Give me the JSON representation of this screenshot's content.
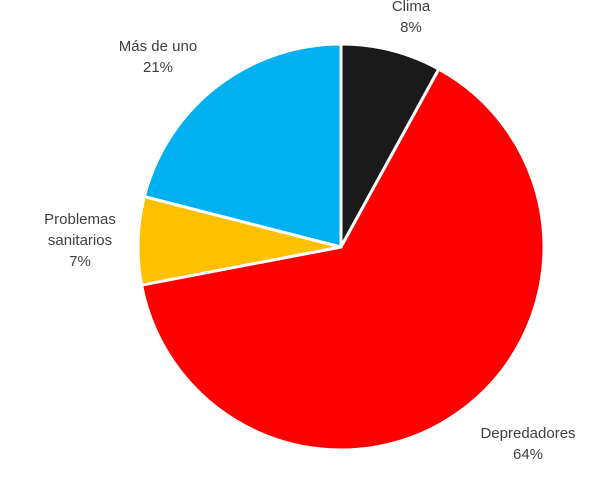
{
  "chart_data": {
    "type": "pie",
    "title": "",
    "legend": "none",
    "slices": [
      {
        "label_lines": [
          "Clima"
        ],
        "percent_label": "8%",
        "value": 8,
        "color": "#1a1a1a"
      },
      {
        "label_lines": [
          "Depredadores"
        ],
        "percent_label": "64%",
        "value": 64,
        "color": "#ff0000"
      },
      {
        "label_lines": [
          "Problemas",
          "sanitarios"
        ],
        "percent_label": "7%",
        "value": 7,
        "color": "#ffc000"
      },
      {
        "label_lines": [
          "Más de uno"
        ],
        "percent_label": "21%",
        "value": 21,
        "color": "#00b0f0"
      }
    ]
  }
}
